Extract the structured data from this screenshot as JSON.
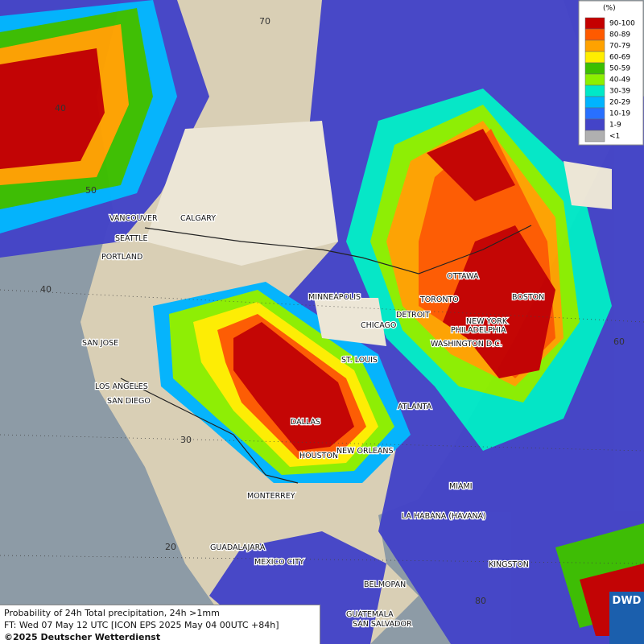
{
  "legend": {
    "unit": "(%)",
    "classes": [
      {
        "label": "90-100",
        "color": "#c40000"
      },
      {
        "label": "80-89",
        "color": "#ff5a00"
      },
      {
        "label": "70-79",
        "color": "#ffa200"
      },
      {
        "label": "60-69",
        "color": "#ffee00"
      },
      {
        "label": "50-59",
        "color": "#3cbf00"
      },
      {
        "label": "40-49",
        "color": "#8cf000"
      },
      {
        "label": "30-39",
        "color": "#00e8c8"
      },
      {
        "label": "20-29",
        "color": "#00b4ff"
      },
      {
        "label": "10-19",
        "color": "#2870ff"
      },
      {
        "label": "1-9",
        "color": "#4444c8"
      },
      {
        "label": "<1",
        "color": "#b0b0b0"
      }
    ]
  },
  "cities": [
    "VANCOUVER",
    "CALGARY",
    "SEATTLE",
    "PORTLAND",
    "MINNEAPOLIS",
    "OTTAWA",
    "TORONTO",
    "BOSTON",
    "DETROIT",
    "CHICAGO",
    "NEW YORK",
    "PHILADELPHIA",
    "WASHINGTON D.C.",
    "SAN JOSE",
    "ST. LOUIS",
    "LOS ANGELES",
    "SAN DIEGO",
    "ATLANTA",
    "DALLAS",
    "HOUSTON",
    "NEW ORLEANS",
    "MONTERREY",
    "MIAMI",
    "LA HABANA (HAVANA)",
    "GUADALAJARA",
    "MEXICO CITY",
    "KINGSTON",
    "BELMOPAN",
    "GUATEMALA",
    "SAN SALVADOR"
  ],
  "graticule_labels": [
    "70",
    "40",
    "50",
    "40",
    "30",
    "20",
    "60",
    "80"
  ],
  "footer": {
    "lines": [
      "Probability of 24h Total precipitation, 24h >1mm",
      "FT: Wed 07 May 12 UTC [ICON EPS 2025 May 04 00UTC +84h]",
      "©2025 Deutscher Wetterdienst"
    ]
  },
  "logo": "DWD"
}
